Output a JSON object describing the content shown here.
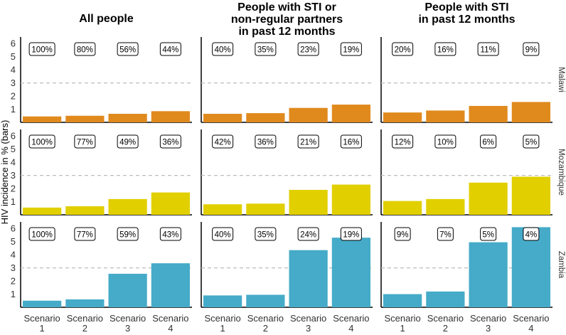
{
  "chart_data": {
    "type": "bar",
    "ylabel": "HIV incidence in % (bars)",
    "ylim": [
      0,
      6.5
    ],
    "yticks": [
      1,
      2,
      3,
      4,
      5,
      6
    ],
    "reference_line": 3,
    "categories": [
      "Scenario\n1",
      "Scenario\n2",
      "Scenario\n3",
      "Scenario\n4"
    ],
    "columns": [
      "All people",
      "People with STI or\nnon-regular partners\nin past 12 months",
      "People with STI\nin past 12 months"
    ],
    "rows": [
      {
        "name": "Malawi",
        "color": "#E08A1E",
        "panels": [
          {
            "values": [
              0.45,
              0.5,
              0.65,
              0.85
            ],
            "labels": [
              "100%",
              "80%",
              "56%",
              "44%"
            ]
          },
          {
            "values": [
              0.65,
              0.7,
              1.1,
              1.35
            ],
            "labels": [
              "40%",
              "35%",
              "23%",
              "19%"
            ]
          },
          {
            "values": [
              0.75,
              0.9,
              1.25,
              1.55
            ],
            "labels": [
              "20%",
              "16%",
              "11%",
              "9%"
            ]
          }
        ]
      },
      {
        "name": "Mozambique",
        "color": "#E1CF00",
        "panels": [
          {
            "values": [
              0.55,
              0.65,
              1.2,
              1.7
            ],
            "labels": [
              "100%",
              "77%",
              "49%",
              "36%"
            ]
          },
          {
            "values": [
              0.8,
              0.85,
              1.9,
              2.3
            ],
            "labels": [
              "42%",
              "36%",
              "21%",
              "16%"
            ]
          },
          {
            "values": [
              1.05,
              1.2,
              2.45,
              2.9
            ],
            "labels": [
              "12%",
              "10%",
              "6%",
              "5%"
            ]
          }
        ]
      },
      {
        "name": "Zambia",
        "color": "#45ABC8",
        "panels": [
          {
            "values": [
              0.5,
              0.6,
              2.55,
              3.35
            ],
            "labels": [
              "100%",
              "77%",
              "59%",
              "43%"
            ]
          },
          {
            "values": [
              0.9,
              0.95,
              4.35,
              5.3
            ],
            "labels": [
              "40%",
              "35%",
              "24%",
              "19%"
            ]
          },
          {
            "values": [
              1.0,
              1.2,
              4.95,
              6.1
            ],
            "labels": [
              "9%",
              "7%",
              "5%",
              "4%"
            ]
          }
        ]
      }
    ]
  }
}
